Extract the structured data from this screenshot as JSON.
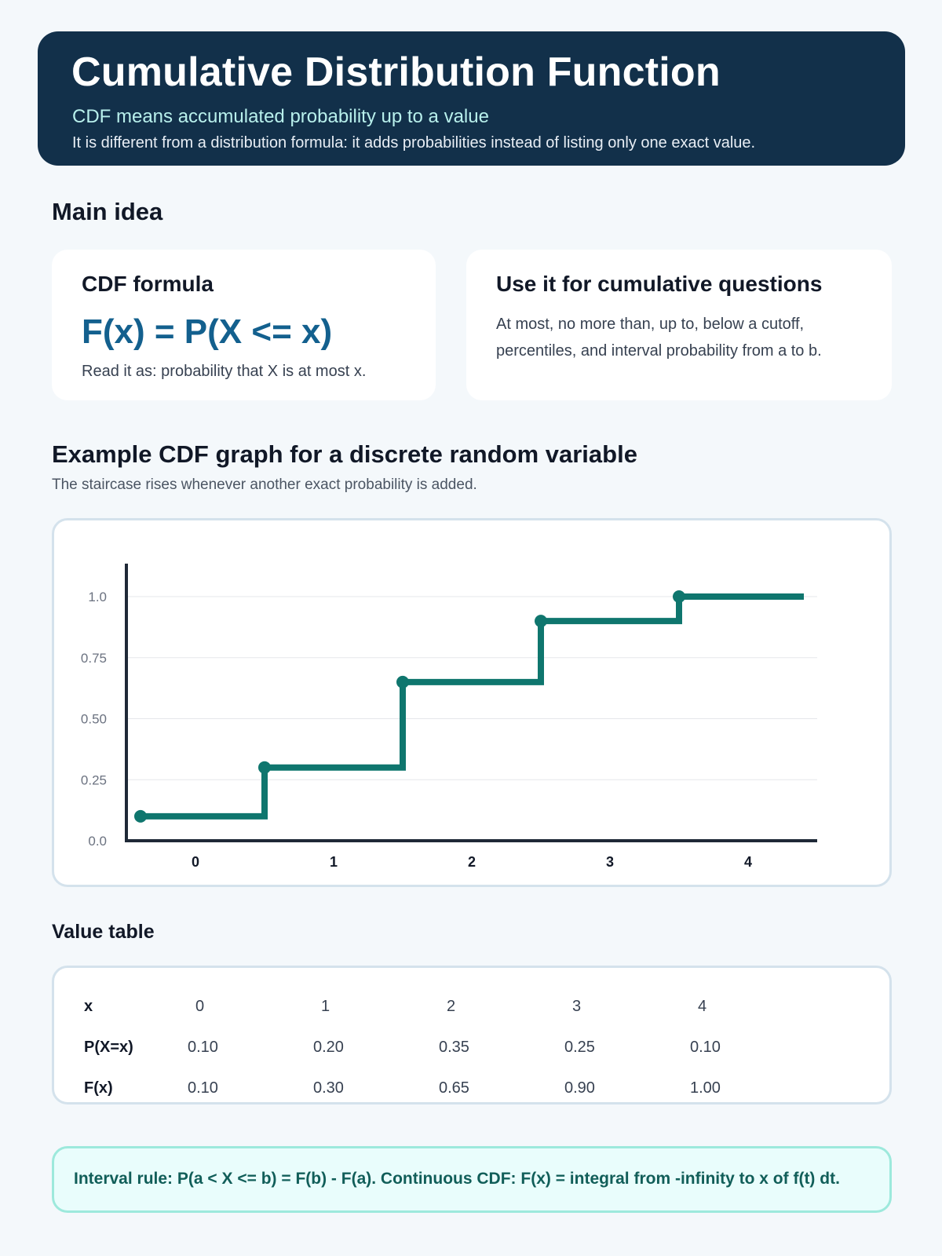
{
  "header": {
    "title": "Cumulative Distribution Function",
    "subtitle": "CDF means accumulated probability up to a value",
    "note": "It is different from a distribution formula: it adds probabilities instead of listing only one exact value."
  },
  "main_idea": {
    "heading": "Main idea",
    "formula_card": {
      "title": "CDF formula",
      "formula": "F(x) = P(X <= x)",
      "note": "Read it as: probability that X is at most x."
    },
    "use_card": {
      "title": "Use it for cumulative questions",
      "text": "At most, no more than, up to, below a cutoff, percentiles, and interval probability from a to b."
    }
  },
  "graph_section": {
    "heading": "Example CDF graph for a discrete random variable",
    "subtitle": "The staircase rises whenever another exact probability is added."
  },
  "chart_data": {
    "type": "line",
    "step": true,
    "categories": [
      "0",
      "1",
      "2",
      "3",
      "4"
    ],
    "series": [
      {
        "values": [
          0.1,
          0.3,
          0.65,
          0.9,
          1.0
        ]
      }
    ],
    "yticks": [
      "0.0",
      "0.25",
      "0.50",
      "0.75",
      "1.0"
    ],
    "ylim": [
      0,
      1.0
    ],
    "grid": true,
    "colors": {
      "line": "#0f766e",
      "axis": "#1f2937",
      "grid": "#e5e7eb",
      "tick": "#6b7280"
    }
  },
  "table_section": {
    "heading": "Value table",
    "rows": [
      {
        "header": "x",
        "cells": [
          "0",
          "1",
          "2",
          "3",
          "4"
        ]
      },
      {
        "header": "P(X=x)",
        "cells": [
          "0.10",
          "0.20",
          "0.35",
          "0.25",
          "0.10"
        ]
      },
      {
        "header": "F(x)",
        "cells": [
          "0.10",
          "0.30",
          "0.65",
          "0.90",
          "1.00"
        ]
      }
    ]
  },
  "rule": {
    "text": "Interval rule: P(a < X <= b) = F(b) - F(a). Continuous CDF: F(x) = integral from -infinity to x of f(t) dt."
  }
}
